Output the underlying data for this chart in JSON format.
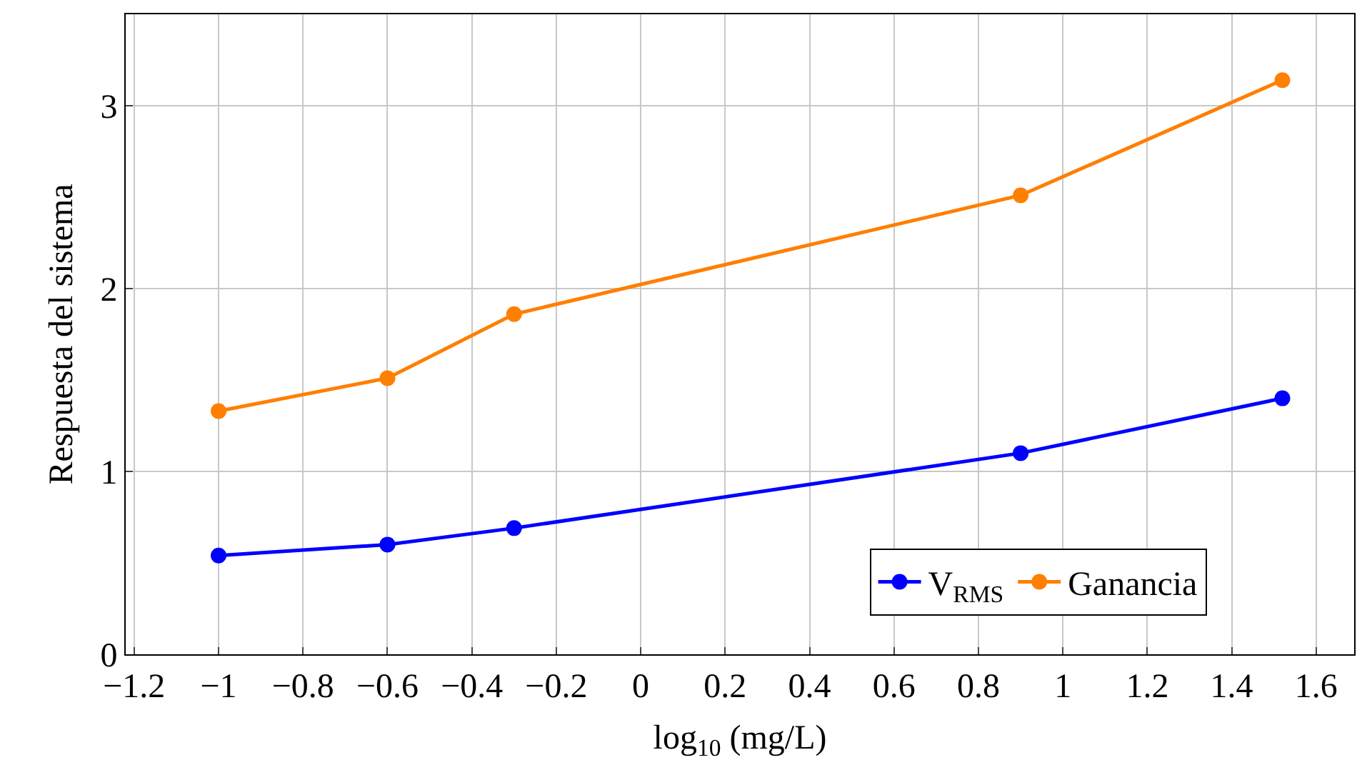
{
  "chart_data": {
    "type": "line",
    "xlabel": "log$_{10}$ (mg/L)",
    "ylabel": "Respuesta del sistema",
    "x": [
      -1,
      -0.6,
      -0.3,
      0.9,
      1.52
    ],
    "series": [
      {
        "name": "V$_{RMS}$",
        "color": "#0000ff",
        "values": [
          0.54,
          0.6,
          0.69,
          1.1,
          1.4
        ]
      },
      {
        "name": "Ganancia",
        "color": "#ff7f00",
        "values": [
          1.33,
          1.51,
          1.86,
          2.51,
          3.14
        ]
      }
    ],
    "xlim": [
      -1.22,
      1.69
    ],
    "ylim": [
      0,
      3.5
    ],
    "xticks": [
      {
        "value": -1.2,
        "label": "−1.2"
      },
      {
        "value": -1,
        "label": "−1"
      },
      {
        "value": -0.8,
        "label": "−0.8"
      },
      {
        "value": -0.6,
        "label": "−0.6"
      },
      {
        "value": -0.4,
        "label": "−0.4"
      },
      {
        "value": -0.2,
        "label": "−0.2"
      },
      0,
      0.2,
      0.4,
      0.6,
      0.8,
      1,
      1.2,
      1.4,
      1.6
    ],
    "yticks": [
      0,
      1,
      2,
      3
    ],
    "grid": true,
    "legend": "bottom right",
    "marker": "circle",
    "line_style": "solid"
  }
}
